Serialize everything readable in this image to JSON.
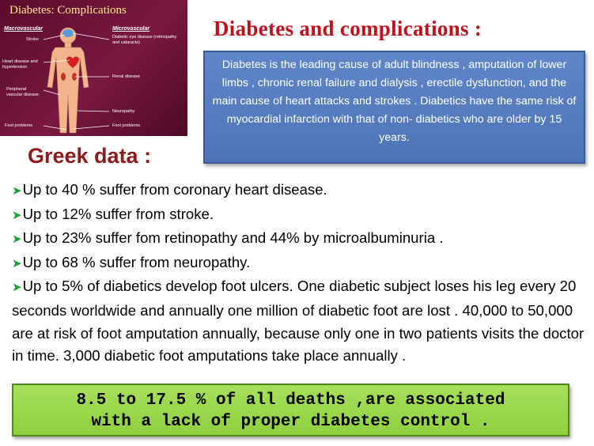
{
  "figure": {
    "title": "Diabetes: Complications",
    "left_heading": "Macrovascular",
    "right_heading": "Microvascular",
    "left_labels": [
      "Stroke",
      "Heart disease and hypertension",
      "Peripheral vascular disease",
      "Foot problems"
    ],
    "right_labels": [
      "Diabetic eye disease (retinopathy and cataracts)",
      "Renal disease",
      "Neuropathy",
      "Foot problems"
    ]
  },
  "title": "Diabetes and complications :",
  "info_text": "Diabetes is the leading cause of adult blindness , amputation of lower limbs , chronic renal failure and dialysis , erectile dysfunction, and the main cause of heart attacks and strokes . Diabetics have the same risk of myocardial infarction with that of non- diabetics who are older by 15 years.",
  "greek_title": "Greek data :",
  "bullets": [
    "Up to 40 %  suffer from coronary heart disease.",
    "Up to 12%   suffer from stroke.",
    "Up to 23% suffer fom retinopathy and 44% by microalbuminuria .",
    "Up to 68 % suffer from neuropathy.",
    "Up to 5% of diabetics develop foot ulcers. One diabetic subject loses his leg every 20 seconds worldwide and annually  one million of diabetic foot are lost . 40,000 to 50,000  are  at risk of foot amputation annually, because only one in two patients visits the doctor in time. 3,000 diabetic foot amputations take place  annually ."
  ],
  "summary_line1": "8.5 to 17.5 % of all deaths ,are  associated",
  "summary_line2": "with a lack of proper  diabetes control ."
}
